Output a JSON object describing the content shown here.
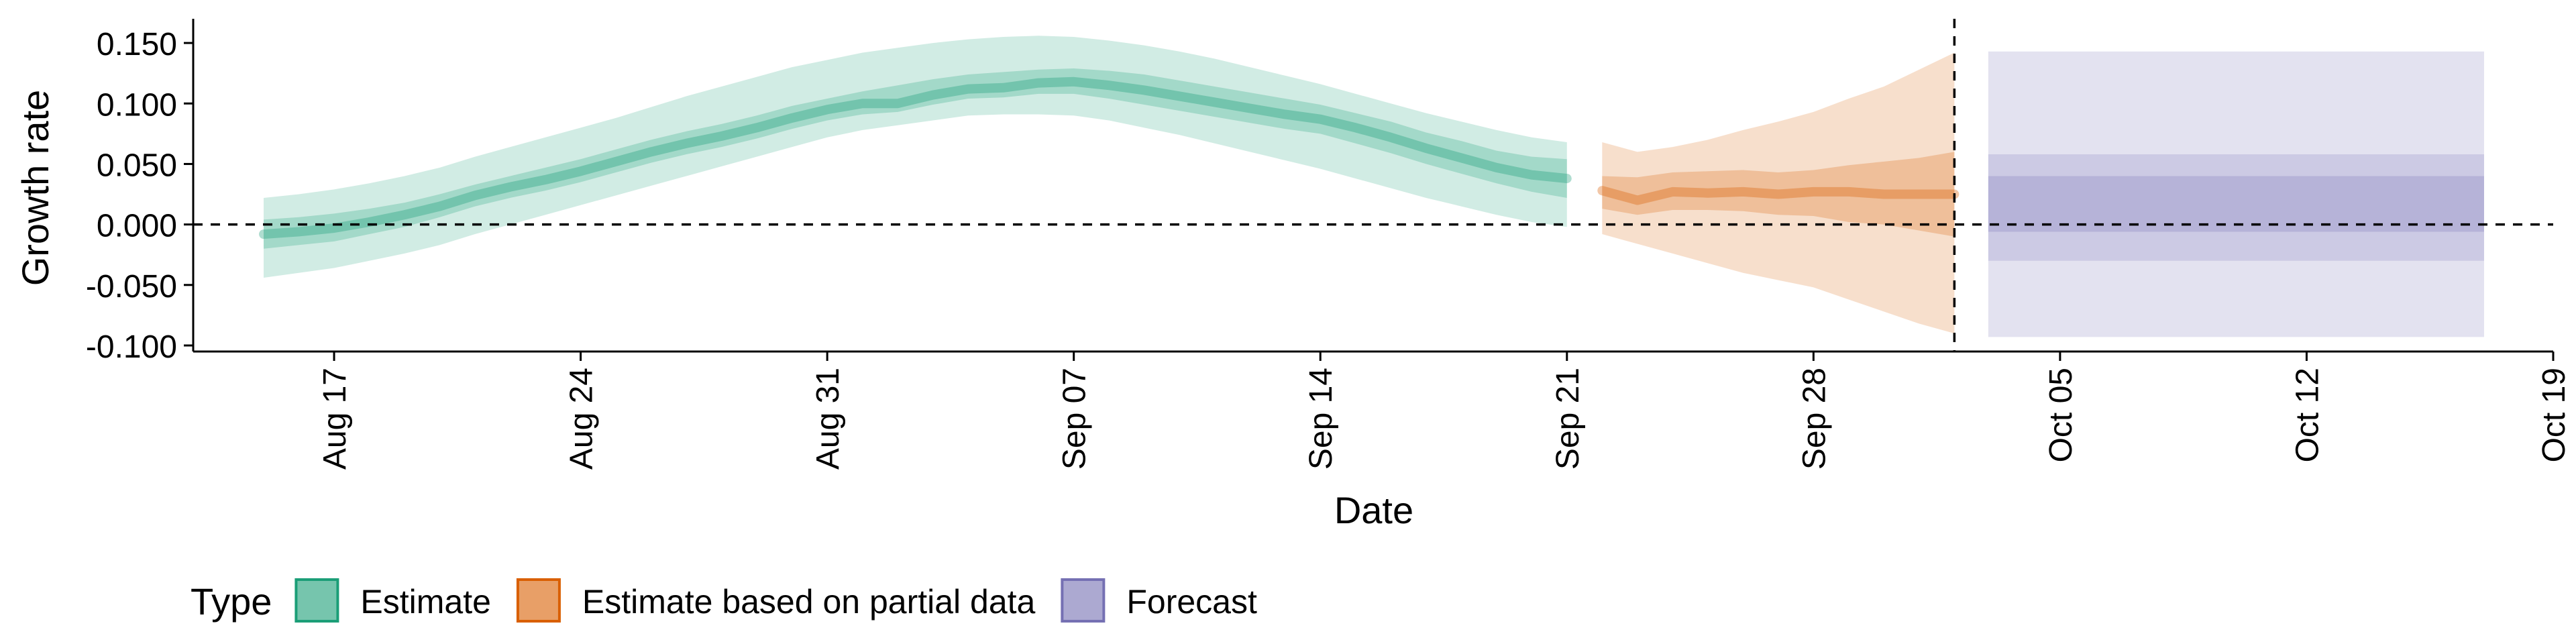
{
  "chart_data": {
    "type": "area",
    "title": "",
    "xlabel": "Date",
    "ylabel": "Growth rate",
    "xlim": [
      "2020-08-13",
      "2020-10-19"
    ],
    "ylim": [
      -0.105,
      0.17
    ],
    "x_ticks": [
      {
        "date": "2020-08-17",
        "label": "Aug 17"
      },
      {
        "date": "2020-08-24",
        "label": "Aug 24"
      },
      {
        "date": "2020-08-31",
        "label": "Aug 31"
      },
      {
        "date": "2020-09-07",
        "label": "Sep 07"
      },
      {
        "date": "2020-09-14",
        "label": "Sep 14"
      },
      {
        "date": "2020-09-21",
        "label": "Sep 21"
      },
      {
        "date": "2020-09-28",
        "label": "Sep 28"
      },
      {
        "date": "2020-10-05",
        "label": "Oct 05"
      },
      {
        "date": "2020-10-12",
        "label": "Oct 12"
      },
      {
        "date": "2020-10-19",
        "label": "Oct 19"
      }
    ],
    "y_ticks": [
      {
        "value": 0.15,
        "label": "0.150"
      },
      {
        "value": 0.1,
        "label": "0.100"
      },
      {
        "value": 0.05,
        "label": "0.050"
      },
      {
        "value": 0.0,
        "label": "0.000"
      },
      {
        "value": -0.05,
        "label": "-0.050"
      },
      {
        "value": -0.1,
        "label": "-0.100"
      }
    ],
    "reference_lines": [
      {
        "axis": "y",
        "value": 0.0,
        "style": "dashed"
      },
      {
        "axis": "x",
        "value": "2020-10-02",
        "style": "dashed"
      }
    ],
    "grid": false,
    "legend": {
      "title": "Type",
      "position": "bottom-left",
      "entries": [
        {
          "label": "Estimate",
          "color": "#1b9e77"
        },
        {
          "label": "Estimate based on partial data",
          "color": "#d95f02"
        },
        {
          "label": "Forecast",
          "color": "#7570b3"
        }
      ]
    },
    "series": [
      {
        "name": "Estimate",
        "color": "#1b9e77",
        "x": [
          "2020-08-15",
          "2020-08-16",
          "2020-08-17",
          "2020-08-18",
          "2020-08-19",
          "2020-08-20",
          "2020-08-21",
          "2020-08-22",
          "2020-08-23",
          "2020-08-24",
          "2020-08-25",
          "2020-08-26",
          "2020-08-27",
          "2020-08-28",
          "2020-08-29",
          "2020-08-30",
          "2020-08-31",
          "2020-09-01",
          "2020-09-02",
          "2020-09-03",
          "2020-09-04",
          "2020-09-05",
          "2020-09-06",
          "2020-09-07",
          "2020-09-08",
          "2020-09-09",
          "2020-09-10",
          "2020-09-11",
          "2020-09-12",
          "2020-09-13",
          "2020-09-14",
          "2020-09-15",
          "2020-09-16",
          "2020-09-17",
          "2020-09-18",
          "2020-09-19",
          "2020-09-20",
          "2020-09-21"
        ],
        "median": [
          -0.008,
          -0.006,
          -0.003,
          0.002,
          0.008,
          0.015,
          0.024,
          0.031,
          0.037,
          0.044,
          0.052,
          0.06,
          0.067,
          0.073,
          0.08,
          0.088,
          0.095,
          0.1,
          0.1,
          0.107,
          0.112,
          0.113,
          0.117,
          0.118,
          0.115,
          0.111,
          0.106,
          0.101,
          0.096,
          0.091,
          0.087,
          0.08,
          0.072,
          0.063,
          0.055,
          0.047,
          0.041,
          0.038
        ],
        "inner_lower": [
          -0.02,
          -0.017,
          -0.014,
          -0.008,
          -0.002,
          0.006,
          0.015,
          0.022,
          0.028,
          0.035,
          0.043,
          0.051,
          0.058,
          0.064,
          0.071,
          0.079,
          0.086,
          0.091,
          0.093,
          0.099,
          0.104,
          0.105,
          0.108,
          0.108,
          0.104,
          0.099,
          0.094,
          0.089,
          0.084,
          0.079,
          0.075,
          0.067,
          0.059,
          0.05,
          0.042,
          0.034,
          0.027,
          0.022
        ],
        "inner_upper": [
          0.004,
          0.006,
          0.009,
          0.013,
          0.018,
          0.025,
          0.033,
          0.04,
          0.047,
          0.054,
          0.062,
          0.07,
          0.077,
          0.083,
          0.09,
          0.098,
          0.104,
          0.11,
          0.115,
          0.12,
          0.124,
          0.126,
          0.128,
          0.129,
          0.127,
          0.124,
          0.119,
          0.114,
          0.109,
          0.104,
          0.099,
          0.092,
          0.085,
          0.076,
          0.069,
          0.061,
          0.056,
          0.054
        ],
        "outer_lower": [
          -0.044,
          -0.04,
          -0.036,
          -0.03,
          -0.024,
          -0.017,
          -0.008,
          0.0,
          0.008,
          0.016,
          0.024,
          0.032,
          0.04,
          0.048,
          0.056,
          0.064,
          0.072,
          0.078,
          0.082,
          0.086,
          0.09,
          0.091,
          0.091,
          0.09,
          0.086,
          0.08,
          0.074,
          0.067,
          0.06,
          0.053,
          0.046,
          0.038,
          0.03,
          0.022,
          0.015,
          0.008,
          0.002,
          -0.002
        ],
        "outer_upper": [
          0.022,
          0.025,
          0.029,
          0.034,
          0.04,
          0.047,
          0.056,
          0.064,
          0.072,
          0.08,
          0.088,
          0.097,
          0.106,
          0.114,
          0.122,
          0.13,
          0.136,
          0.142,
          0.146,
          0.15,
          0.153,
          0.155,
          0.156,
          0.155,
          0.152,
          0.148,
          0.143,
          0.137,
          0.13,
          0.123,
          0.116,
          0.108,
          0.1,
          0.092,
          0.085,
          0.078,
          0.072,
          0.068
        ]
      },
      {
        "name": "Estimate based on partial data",
        "color": "#d95f02",
        "x": [
          "2020-09-22",
          "2020-09-23",
          "2020-09-24",
          "2020-09-25",
          "2020-09-26",
          "2020-09-27",
          "2020-09-28",
          "2020-09-29",
          "2020-09-30",
          "2020-10-01",
          "2020-10-02"
        ],
        "median": [
          0.028,
          0.02,
          0.027,
          0.026,
          0.027,
          0.025,
          0.027,
          0.027,
          0.025,
          0.025,
          0.025
        ],
        "inner_lower": [
          0.013,
          0.008,
          0.012,
          0.012,
          0.011,
          0.008,
          0.007,
          0.002,
          0.0,
          -0.005,
          -0.01
        ],
        "inner_upper": [
          0.04,
          0.039,
          0.043,
          0.044,
          0.045,
          0.043,
          0.045,
          0.049,
          0.052,
          0.055,
          0.06
        ],
        "outer_lower": [
          -0.008,
          -0.016,
          -0.024,
          -0.032,
          -0.04,
          -0.046,
          -0.052,
          -0.062,
          -0.072,
          -0.082,
          -0.09
        ],
        "outer_upper": [
          0.068,
          0.06,
          0.064,
          0.07,
          0.078,
          0.085,
          0.093,
          0.104,
          0.114,
          0.128,
          0.142
        ]
      },
      {
        "name": "Forecast",
        "color": "#7570b3",
        "x": [
          "2020-10-03",
          "2020-10-17"
        ],
        "median": [
          0.0,
          0.0
        ],
        "inner_lower": [
          -0.006,
          -0.006
        ],
        "inner_upper": [
          0.04,
          0.04
        ],
        "mid_lower": [
          -0.03,
          -0.03
        ],
        "mid_upper": [
          0.058,
          0.058
        ],
        "outer_lower": [
          -0.093,
          -0.093
        ],
        "outer_upper": [
          0.143,
          0.143
        ]
      }
    ]
  }
}
